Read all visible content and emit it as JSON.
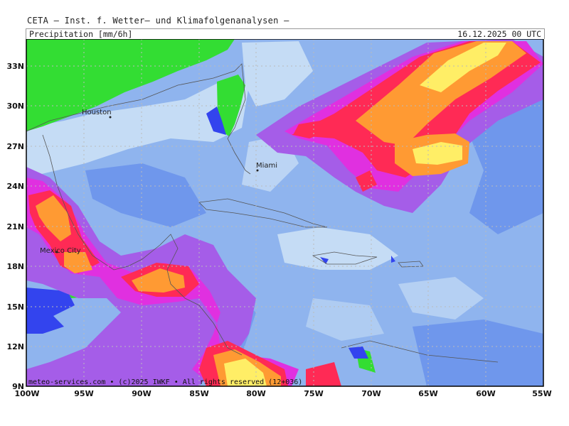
{
  "header": {
    "title": "CETA – Inst. f. Wetter– und Klimafolgenanalysen –"
  },
  "subheader": {
    "parameter": "Precipitation [mm/6h]",
    "timestamp": "16.12.2025 00 UTC"
  },
  "map": {
    "lat_labels": [
      "33N",
      "30N",
      "27N",
      "24N",
      "21N",
      "18N",
      "15N",
      "12N",
      "9N"
    ],
    "lon_labels": [
      "100W",
      "95W",
      "90W",
      "85W",
      "80W",
      "75W",
      "70W",
      "65W",
      "60W",
      "55W"
    ],
    "cities": [
      {
        "name": "Houston"
      },
      {
        "name": "Miami"
      },
      {
        "name": "Mexico City"
      }
    ],
    "footer": "meteo-services.com • (c)2025 IWKF • All rights reserved (12+036)",
    "colors": {
      "background": "#8fb4ee",
      "light": "#c5dcf5",
      "mid": "#6f97ec",
      "land_green": "#33dd33",
      "blue": "#3344ee",
      "purple": "#a55de8",
      "magenta": "#e030e0",
      "red": "#ff2a55",
      "orange": "#ff9a33",
      "yellow": "#ffee66"
    }
  }
}
